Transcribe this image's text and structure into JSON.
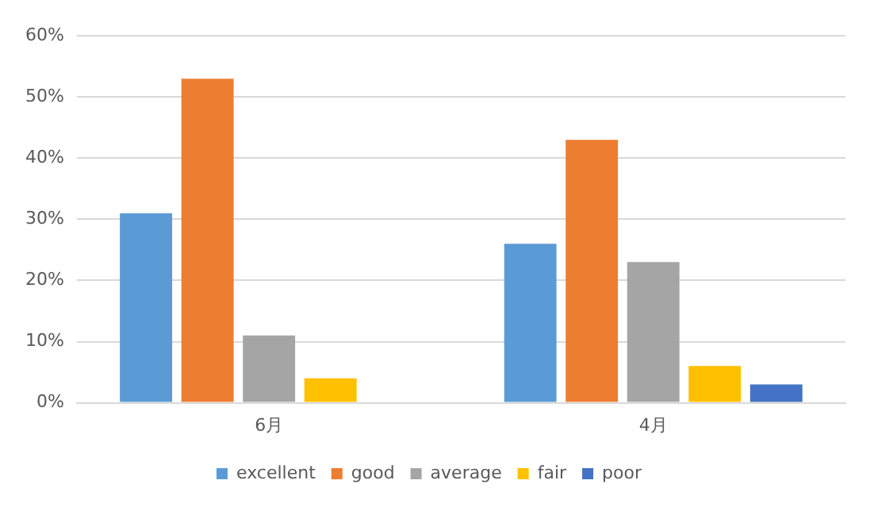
{
  "chart_data": {
    "type": "bar",
    "categories": [
      "6月",
      "4月"
    ],
    "series": [
      {
        "name": "excellent",
        "color": "#5b9bd5",
        "values": [
          31,
          26
        ]
      },
      {
        "name": "good",
        "color": "#ed7d31",
        "values": [
          53,
          43
        ]
      },
      {
        "name": "average",
        "color": "#a5a5a5",
        "values": [
          11,
          23
        ]
      },
      {
        "name": "fair",
        "color": "#ffc000",
        "values": [
          4,
          6
        ]
      },
      {
        "name": "poor",
        "color": "#4472c4",
        "values": [
          0,
          3
        ]
      }
    ],
    "ylim": [
      0,
      60
    ],
    "yticks": [
      {
        "value": 0,
        "label": "0%"
      },
      {
        "value": 10,
        "label": "10%"
      },
      {
        "value": 20,
        "label": "20%"
      },
      {
        "value": 30,
        "label": "30%"
      },
      {
        "value": 40,
        "label": "40%"
      },
      {
        "value": 50,
        "label": "50%"
      },
      {
        "value": 60,
        "label": "60%"
      }
    ],
    "grid": "y",
    "legend": "bottom"
  }
}
